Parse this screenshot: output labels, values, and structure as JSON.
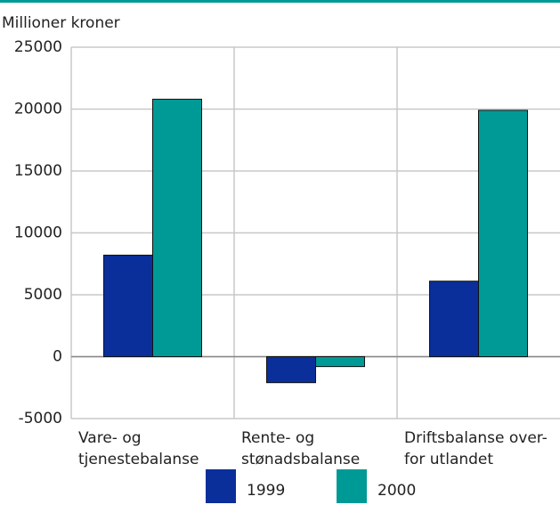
{
  "chart_data": {
    "type": "bar",
    "y_axis_title": "Millioner kroner",
    "categories": [
      "Vare- og\ntjenestebalanse",
      "Rente- og\nstønadsbalanse",
      "Driftsbalanse over-\nfor utlandet"
    ],
    "series": [
      {
        "name": "1999",
        "color": "#0a2f9a",
        "values": [
          8200,
          -2100,
          6100
        ]
      },
      {
        "name": "2000",
        "color": "#009a96",
        "values": [
          20800,
          -800,
          19900
        ]
      }
    ],
    "ylim": [
      -5000,
      25000
    ],
    "yticks": [
      -5000,
      0,
      5000,
      10000,
      15000,
      20000,
      25000
    ],
    "grid": true
  }
}
